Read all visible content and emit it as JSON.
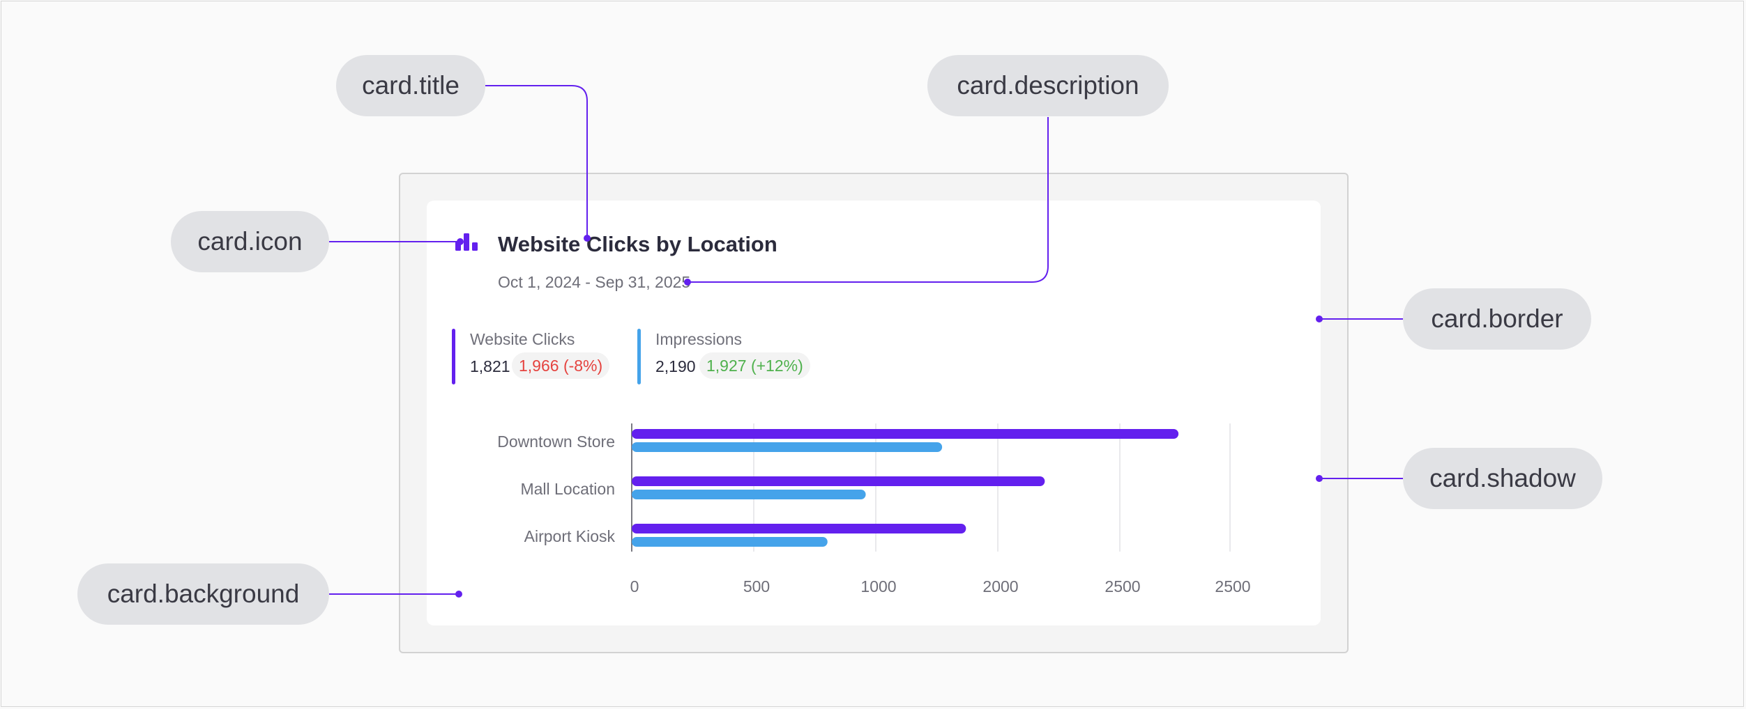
{
  "colors": {
    "accent": "#6320ee",
    "secondary": "#45a3ea",
    "negative": "#e5433f",
    "positive": "#4fb14d",
    "pill_bg": "#e1e2e5"
  },
  "annotations": {
    "title": "card.title",
    "description": "card.description",
    "icon": "card.icon",
    "border": "card.border",
    "shadow": "card.shadow",
    "background": "card.background"
  },
  "card": {
    "icon": "bar-chart-icon",
    "title": "Website Clicks by Location",
    "description": "Oct 1, 2024 - Sep 31, 2025"
  },
  "metrics": [
    {
      "label": "Website Clicks",
      "value": "1,821",
      "change": "1,966 (-8%)",
      "trend": "negative"
    },
    {
      "label": "Impressions",
      "value": "2,190",
      "change": "1,927 (+12%)",
      "trend": "positive"
    }
  ],
  "chart_data": {
    "type": "bar",
    "orientation": "horizontal",
    "categories": [
      "Downtown Store",
      "Mall Location",
      "Airport Kiosk"
    ],
    "x_tick_labels": [
      "0",
      "500",
      "1000",
      "2000",
      "2500",
      "2500"
    ],
    "series": [
      {
        "name": "Website Clicks",
        "color": "#6320ee",
        "values": [
          2290,
          1730,
          1400
        ]
      },
      {
        "name": "Impressions",
        "color": "#45a3ea",
        "values": [
          1300,
          980,
          820
        ]
      }
    ],
    "xlim": [
      0,
      2500
    ],
    "grid": true
  }
}
